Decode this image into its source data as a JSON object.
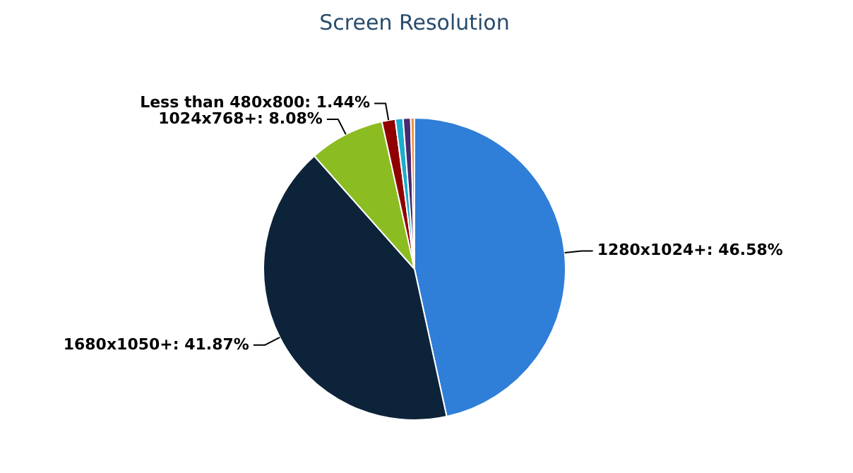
{
  "chart_data": {
    "type": "pie",
    "title": "Screen Resolution",
    "categories": [
      "1280x1024+",
      "1680x1050+",
      "1024x768+",
      "Less than 480x800",
      null,
      null,
      null
    ],
    "values": [
      46.58,
      41.87,
      8.08,
      1.44,
      0.82,
      0.81,
      0.4
    ],
    "value_labels": [
      "46.58%",
      "41.87%",
      "8.08%",
      "1.44%",
      null,
      null,
      null
    ],
    "colors": [
      "#2f7ed8",
      "#0d233a",
      "#8bbc21",
      "#910000",
      "#1aadce",
      "#492970",
      "#f28f43"
    ]
  }
}
